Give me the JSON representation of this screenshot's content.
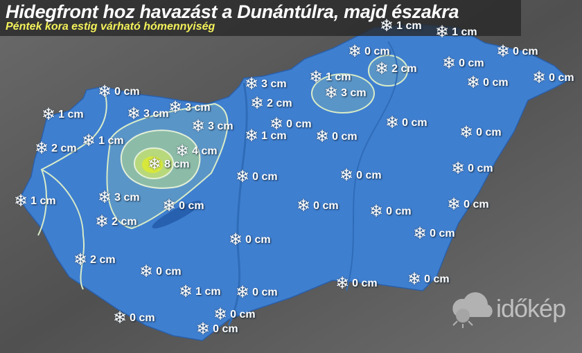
{
  "title": "Hidegfront hoz havazást a Dunántúlra, majd északra",
  "subtitle": "Péntek kora estig várható hómennyiség",
  "logo": "időkép",
  "colors": {
    "country_fill": "#3f7fd0",
    "contour": "#d8ecc8",
    "zone_3cm": "#7fb0c8",
    "zone_4cm": "#b4d89a",
    "zone_8cm": "#d8e83a",
    "background": "#5a5a5a"
  },
  "icon": "snowflake-icon",
  "stations": [
    {
      "value": "1 cm"
    },
    {
      "value": "1 cm"
    },
    {
      "value": "0 cm"
    },
    {
      "value": "2 cm"
    },
    {
      "value": "0 cm"
    },
    {
      "value": "0 cm"
    },
    {
      "value": "1 cm"
    },
    {
      "value": "3 cm"
    },
    {
      "value": "0 cm"
    },
    {
      "value": "0 cm"
    },
    {
      "value": "0 cm"
    },
    {
      "value": "3 cm"
    },
    {
      "value": "2 cm"
    },
    {
      "value": "1 cm"
    },
    {
      "value": "3 cm"
    },
    {
      "value": "3 cm"
    },
    {
      "value": "3 cm"
    },
    {
      "value": "0 cm"
    },
    {
      "value": "0 cm"
    },
    {
      "value": "0 cm"
    },
    {
      "value": "0 cm"
    },
    {
      "value": "1 cm"
    },
    {
      "value": "1 cm"
    },
    {
      "value": "2 cm"
    },
    {
      "value": "4 cm"
    },
    {
      "value": "8 cm"
    },
    {
      "value": "0 cm"
    },
    {
      "value": "0 cm"
    },
    {
      "value": "0 cm"
    },
    {
      "value": "1 cm"
    },
    {
      "value": "3 cm"
    },
    {
      "value": "0 cm"
    },
    {
      "value": "0 cm"
    },
    {
      "value": "0 cm"
    },
    {
      "value": "0 cm"
    },
    {
      "value": "2 cm"
    },
    {
      "value": "0 cm"
    },
    {
      "value": "0 cm"
    },
    {
      "value": "2 cm"
    },
    {
      "value": "0 cm"
    },
    {
      "value": "1 cm"
    },
    {
      "value": "0 cm"
    },
    {
      "value": "0 cm"
    },
    {
      "value": "0 cm"
    },
    {
      "value": "0 cm"
    },
    {
      "value": "0 cm"
    },
    {
      "value": "0 cm"
    }
  ]
}
